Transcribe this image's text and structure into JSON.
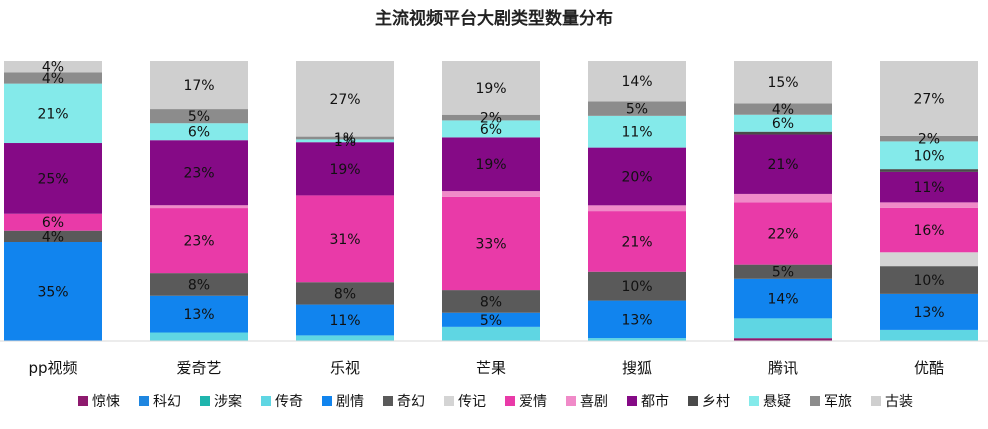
{
  "chart_data": {
    "type": "bar",
    "stacked": true,
    "title": "主流视频平台大剧类型数量分布",
    "categories": [
      "pp视频",
      "爱奇艺",
      "乐视",
      "芒果",
      "搜狐",
      "腾讯",
      "优酷"
    ],
    "unit": "%",
    "ylim": [
      0,
      100
    ],
    "grid": false,
    "legend_position": "bottom",
    "series": [
      {
        "name": "惊悚",
        "color": "#8e1a6e",
        "values": [
          0,
          0,
          0,
          0,
          0,
          1,
          0
        ]
      },
      {
        "name": "科幻",
        "color": "#1f86e0",
        "values": [
          0,
          0,
          0,
          0,
          0,
          0,
          0
        ]
      },
      {
        "name": "涉案",
        "color": "#1fb5ad",
        "values": [
          0,
          0,
          0,
          0,
          0,
          0,
          0
        ]
      },
      {
        "name": "传奇",
        "color": "#5fd6e3",
        "values": [
          0,
          3,
          2,
          5,
          1,
          7,
          4
        ]
      },
      {
        "name": "剧情",
        "color": "#1184ee",
        "values": [
          35,
          13,
          11,
          5,
          13,
          14,
          13
        ]
      },
      {
        "name": "奇幻",
        "color": "#5a5a5a",
        "values": [
          4,
          8,
          8,
          8,
          10,
          5,
          10
        ]
      },
      {
        "name": "传记",
        "color": "#d4d4d4",
        "values": [
          0,
          0,
          0,
          0,
          0,
          0,
          5
        ]
      },
      {
        "name": "爱情",
        "color": "#e93aa8",
        "values": [
          6,
          23,
          31,
          33,
          21,
          22,
          16
        ]
      },
      {
        "name": "喜剧",
        "color": "#f08ac8",
        "values": [
          0,
          1,
          0,
          2,
          2,
          3,
          2
        ]
      },
      {
        "name": "都市",
        "color": "#850a86",
        "values": [
          25,
          23,
          19,
          19,
          20,
          21,
          11
        ]
      },
      {
        "name": "乡村",
        "color": "#4a4a4a",
        "values": [
          0,
          0,
          0,
          0,
          0,
          1,
          1
        ]
      },
      {
        "name": "悬疑",
        "color": "#84eaea",
        "values": [
          21,
          6,
          1,
          6,
          11,
          6,
          10
        ]
      },
      {
        "name": "军旅",
        "color": "#8c8c8c",
        "values": [
          4,
          5,
          1,
          2,
          5,
          4,
          2
        ]
      },
      {
        "name": "古装",
        "color": "#cfcfcf",
        "values": [
          4,
          17,
          27,
          19,
          14,
          15,
          27
        ]
      }
    ],
    "data_labels": [
      [
        "35%",
        "4%",
        "6%",
        "25%",
        "21%",
        "4%",
        "4%"
      ],
      [
        "13%",
        "8%",
        "23%",
        "23%",
        "6%",
        "5%",
        "17%"
      ],
      [
        "11%",
        "8%",
        "31%",
        "19%",
        "1%",
        "1%",
        "27%"
      ],
      [
        "5%",
        "8%",
        "33%",
        "19%",
        "6%",
        "2%",
        "19%"
      ],
      [
        "13%",
        "10%",
        "21%",
        "20%",
        "11%",
        "5%",
        "14%"
      ],
      [
        "14%",
        "5%",
        "22%",
        "21%",
        "6%",
        "4%",
        "15%"
      ],
      [
        "13%",
        "10%",
        "16%",
        "11%",
        "10%",
        "2%",
        "27%"
      ]
    ],
    "data_label_series": [
      [
        "剧情",
        "奇幻",
        "爱情",
        "都市",
        "悬疑",
        "军旅",
        "古装"
      ],
      [
        "剧情",
        "奇幻",
        "爱情",
        "都市",
        "悬疑",
        "军旅",
        "古装"
      ],
      [
        "剧情",
        "奇幻",
        "爱情",
        "都市",
        "悬疑",
        "军旅",
        "古装"
      ],
      [
        "剧情",
        "奇幻",
        "爱情",
        "都市",
        "悬疑",
        "军旅",
        "古装"
      ],
      [
        "剧情",
        "奇幻",
        "爱情",
        "都市",
        "悬疑",
        "军旅",
        "古装"
      ],
      [
        "剧情",
        "奇幻",
        "爱情",
        "都市",
        "悬疑",
        "军旅",
        "古装"
      ],
      [
        "剧情",
        "奇幻",
        "爱情",
        "都市",
        "悬疑",
        "军旅",
        "古装"
      ]
    ]
  }
}
